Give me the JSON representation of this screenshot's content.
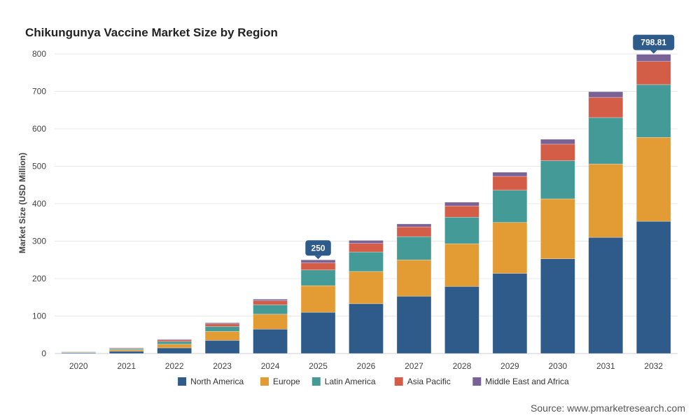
{
  "chart_data": {
    "type": "bar",
    "stacked": true,
    "title": "Chikungunya Vaccine Market Size by Region",
    "ylabel": "Market Size (USD Million)",
    "xlabel": "",
    "ylim": [
      0,
      800
    ],
    "yticks": [
      0,
      100,
      200,
      300,
      400,
      500,
      600,
      700,
      800
    ],
    "grid": true,
    "legend_position": "bottom",
    "categories": [
      "2020",
      "2021",
      "2022",
      "2023",
      "2024",
      "2025",
      "2026",
      "2027",
      "2028",
      "2029",
      "2030",
      "2031",
      "2032"
    ],
    "series": [
      {
        "name": "North America",
        "color": "#2e5b8a",
        "values": [
          2,
          6,
          15,
          35,
          65,
          110,
          133,
          153,
          179,
          214,
          253,
          310,
          353
        ]
      },
      {
        "name": "Europe",
        "color": "#e39b34",
        "values": [
          1,
          4,
          10,
          24,
          40,
          71,
          86,
          97,
          114,
          136,
          160,
          196,
          224
        ]
      },
      {
        "name": "Latin America",
        "color": "#449a96",
        "values": [
          1,
          3,
          7,
          13,
          25,
          42,
          52,
          62,
          71,
          86,
          102,
          124,
          141
        ]
      },
      {
        "name": "Asia Pacific",
        "color": "#d45d48",
        "values": [
          0.5,
          1.5,
          4,
          7,
          11,
          19,
          23,
          26,
          30,
          37,
          44,
          54,
          62
        ]
      },
      {
        "name": "Middle East and Africa",
        "color": "#7a6296",
        "values": [
          0.5,
          1,
          2,
          3,
          4,
          8,
          8,
          8,
          10,
          11,
          13,
          15,
          18.81
        ]
      }
    ],
    "annotations": [
      {
        "category": "2025",
        "text": "250"
      },
      {
        "category": "2032",
        "text": "798.81"
      }
    ]
  },
  "source": "Source: www.pmarketresearch.com"
}
